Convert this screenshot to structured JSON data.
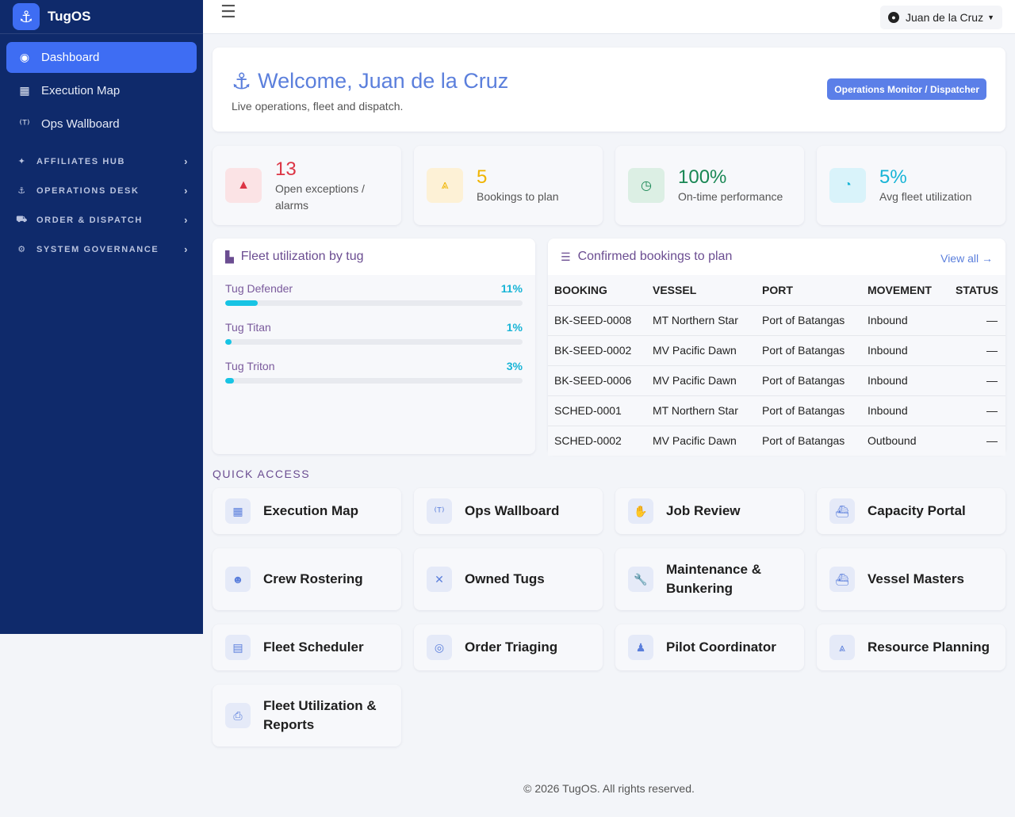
{
  "brand": {
    "name": "TugOS",
    "logo_icon": "anchor-icon"
  },
  "sidebar": {
    "items": [
      {
        "label": "Dashboard",
        "icon": "gauge-icon",
        "glyph": "◉",
        "active": true
      },
      {
        "label": "Execution Map",
        "icon": "map-icon",
        "glyph": "▦",
        "active": false
      },
      {
        "label": "Ops Wallboard",
        "icon": "broadcast-tower-icon",
        "glyph": "⁽ᵀ⁾",
        "active": false
      }
    ],
    "sections": [
      {
        "label": "AFFILIATES HUB",
        "icon": "handshake-icon",
        "glyph": "✦"
      },
      {
        "label": "OPERATIONS DESK",
        "icon": "anchor-icon",
        "glyph": "⚓"
      },
      {
        "label": "ORDER & DISPATCH",
        "icon": "dolly-icon",
        "glyph": "⛟"
      },
      {
        "label": "SYSTEM GOVERNANCE",
        "icon": "gear-icon",
        "glyph": "⚙"
      }
    ]
  },
  "topbar": {
    "user_name": "Juan de la Cruz"
  },
  "welcome": {
    "title": "Welcome, Juan de la Cruz",
    "subtitle": "Live operations, fleet and dispatch.",
    "role": "Operations Monitor / Dispatcher"
  },
  "stats": [
    {
      "value": "13",
      "label": "Open exceptions / alarms",
      "color": "#dc3545",
      "bg": "#fbe3e5",
      "icon": "warning-icon",
      "glyph": "▲"
    },
    {
      "value": "5",
      "label": "Bookings to plan",
      "color": "#f0b400",
      "bg": "#fdf1d6",
      "icon": "compass-drafting-icon",
      "glyph": "⩓"
    },
    {
      "value": "100%",
      "label": "On-time performance",
      "color": "#198754",
      "bg": "#dcefe4",
      "icon": "clock-icon",
      "glyph": "◷"
    },
    {
      "value": "5%",
      "label": "Avg fleet utilization",
      "color": "#17b4d6",
      "bg": "#d9f3fa",
      "icon": "gauge-icon",
      "glyph": "◔"
    }
  ],
  "fleet": {
    "title": "Fleet utilization by tug",
    "rows": [
      {
        "name": "Tug Defender",
        "pct_label": "11%",
        "value": 11
      },
      {
        "name": "Tug Titan",
        "pct_label": "1%",
        "value": 1
      },
      {
        "name": "Tug Triton",
        "pct_label": "3%",
        "value": 3
      }
    ]
  },
  "bookings": {
    "title": "Confirmed bookings to plan",
    "view_all": "View all",
    "columns": [
      "BOOKING",
      "VESSEL",
      "PORT",
      "MOVEMENT",
      "STATUS"
    ],
    "rows": [
      [
        "BK-SEED-0008",
        "MT Northern Star",
        "Port of Batangas",
        "Inbound",
        "—"
      ],
      [
        "BK-SEED-0002",
        "MV Pacific Dawn",
        "Port of Batangas",
        "Inbound",
        "—"
      ],
      [
        "BK-SEED-0006",
        "MV Pacific Dawn",
        "Port of Batangas",
        "Inbound",
        "—"
      ],
      [
        "SCHED-0001",
        "MT Northern Star",
        "Port of Batangas",
        "Inbound",
        "—"
      ],
      [
        "SCHED-0002",
        "MV Pacific Dawn",
        "Port of Batangas",
        "Outbound",
        "—"
      ]
    ]
  },
  "quick_access": {
    "label": "QUICK ACCESS",
    "items": [
      {
        "label": "Execution Map",
        "icon": "map-icon",
        "glyph": "▦"
      },
      {
        "label": "Ops Wallboard",
        "icon": "broadcast-tower-icon",
        "glyph": "⁽ᵀ⁾"
      },
      {
        "label": "Job Review",
        "icon": "hands-icon",
        "glyph": "✋"
      },
      {
        "label": "Capacity Portal",
        "icon": "ship-icon",
        "glyph": "⛴"
      },
      {
        "label": "Crew Rostering",
        "icon": "users-icon",
        "glyph": "☻"
      },
      {
        "label": "Owned Tugs",
        "icon": "tools-icon",
        "glyph": "✕"
      },
      {
        "label": "Maintenance & Bunkering",
        "icon": "wrench-icon",
        "glyph": "🔧"
      },
      {
        "label": "Vessel Masters",
        "icon": "ship-icon",
        "glyph": "⛴"
      },
      {
        "label": "Fleet Scheduler",
        "icon": "calendar-icon",
        "glyph": "▤"
      },
      {
        "label": "Order Triaging",
        "icon": "headset-icon",
        "glyph": "◎"
      },
      {
        "label": "Pilot Coordinator",
        "icon": "user-tie-icon",
        "glyph": "♟"
      },
      {
        "label": "Resource Planning",
        "icon": "compass-drafting-icon",
        "glyph": "⩓"
      },
      {
        "label": "Fleet Utilization & Reports",
        "icon": "print-icon",
        "glyph": "⎙"
      }
    ]
  },
  "footer": {
    "text": "© 2026 TugOS. All rights reserved."
  }
}
